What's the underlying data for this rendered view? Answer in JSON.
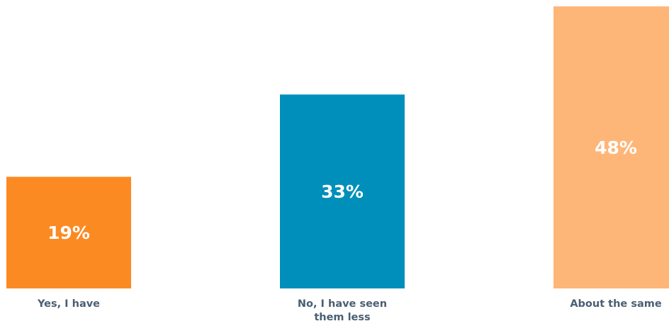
{
  "chart_data": {
    "type": "bar",
    "categories": [
      {
        "label_lines": [
          "Yes, I have"
        ]
      },
      {
        "label_lines": [
          "No, I have seen",
          "them less"
        ]
      },
      {
        "label_lines": [
          "About the same"
        ]
      }
    ],
    "values": [
      19,
      33,
      48
    ],
    "value_labels": [
      "19%",
      "33%",
      "48%"
    ],
    "colors": [
      "#fc8a23",
      "#008fba",
      "#feb678"
    ],
    "value_label_color": "#ffffff",
    "category_label_color": "#4a5f73",
    "ylim": [
      0,
      48
    ],
    "grid": false,
    "legend": "none"
  }
}
